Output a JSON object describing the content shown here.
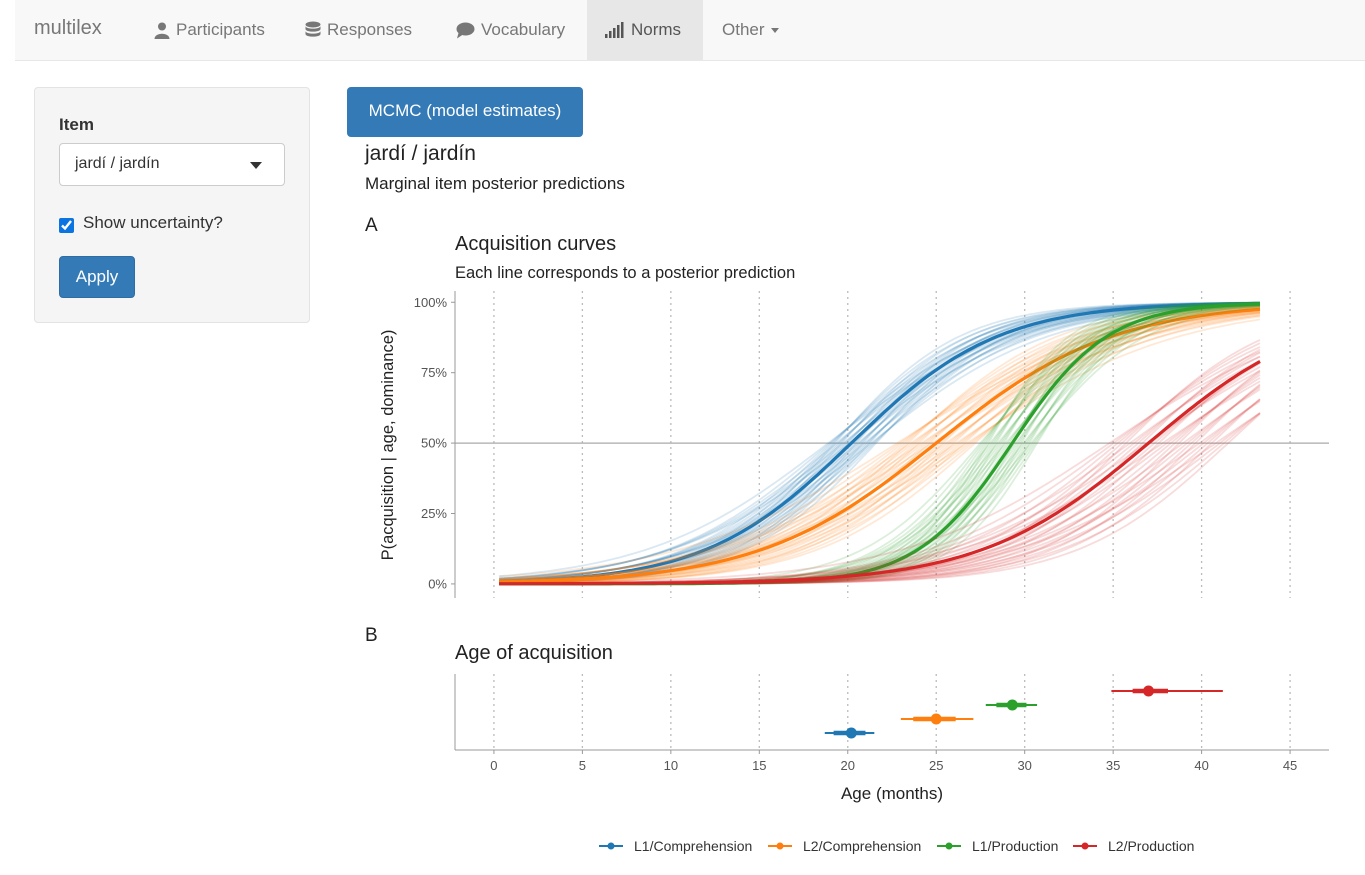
{
  "navbar": {
    "brand": "multilex",
    "items": [
      {
        "label": "Participants",
        "icon": "user-icon"
      },
      {
        "label": "Responses",
        "icon": "database-icon"
      },
      {
        "label": "Vocabulary",
        "icon": "comment-icon"
      },
      {
        "label": "Norms",
        "icon": "signal-icon",
        "active": true
      },
      {
        "label": "Other",
        "icon": "chevron-down-icon"
      }
    ]
  },
  "sidebar": {
    "item_label": "Item",
    "item_value": "jardí / jardín",
    "uncertainty_label": "Show uncertainty?",
    "uncertainty_checked": true,
    "apply_label": "Apply"
  },
  "main": {
    "tab_button": "MCMC (model estimates)",
    "item_title": "jardí / jardín",
    "item_subtitle": "Marginal item posterior predictions"
  },
  "chart_data": [
    {
      "panel": "A",
      "type": "line",
      "title": "Acquisition curves",
      "subtitle": "Each line corresponds to a posterior prediction",
      "xlabel": "",
      "ylabel": "P(acquisition | age, dominance)",
      "xlim": [
        -2.2,
        47.2
      ],
      "ylim": [
        -0.05,
        1.04
      ],
      "yticks": [
        0,
        0.25,
        0.5,
        0.75,
        1
      ],
      "yticklabels": [
        "0%",
        "25%",
        "50%",
        "75%",
        "100%"
      ],
      "xticks": [
        0,
        5,
        10,
        15,
        20,
        25,
        30,
        35,
        40,
        45
      ],
      "x_range": [
        0.3,
        43.3
      ],
      "reference_line": 0.5,
      "series": [
        {
          "name": "L1/Comprehension",
          "color": "#1f77b4",
          "aoa": 20.2,
          "slope": 0.24,
          "spread": [
            18.9,
            21.6
          ]
        },
        {
          "name": "L2/Comprehension",
          "color": "#ff7f0e",
          "aoa": 25.0,
          "slope": 0.2,
          "spread": [
            22.8,
            27.2
          ]
        },
        {
          "name": "L1/Production",
          "color": "#2ca02c",
          "aoa": 29.3,
          "slope": 0.37,
          "spread": [
            27.5,
            30.7
          ]
        },
        {
          "name": "L2/Production",
          "color": "#d62728",
          "aoa": 37.0,
          "slope": 0.21,
          "spread": [
            34.8,
            41.5
          ]
        }
      ]
    },
    {
      "panel": "B",
      "type": "scatter",
      "title": "Age of acquisition",
      "xlabel": "Age (months)",
      "xlim": [
        -2.2,
        47.2
      ],
      "xticks": [
        0,
        5,
        10,
        15,
        20,
        25,
        30,
        35,
        40,
        45
      ],
      "points": [
        {
          "name": "L1/Comprehension",
          "color": "#1f77b4",
          "median": 20.2,
          "inner": [
            19.2,
            21.0
          ],
          "outer": [
            18.7,
            21.5
          ]
        },
        {
          "name": "L2/Comprehension",
          "color": "#ff7f0e",
          "median": 25.0,
          "inner": [
            23.7,
            26.1
          ],
          "outer": [
            23.0,
            27.1
          ]
        },
        {
          "name": "L1/Production",
          "color": "#2ca02c",
          "median": 29.3,
          "inner": [
            28.4,
            30.1
          ],
          "outer": [
            27.8,
            30.7
          ]
        },
        {
          "name": "L2/Production",
          "color": "#d62728",
          "median": 37.0,
          "inner": [
            36.1,
            38.1
          ],
          "outer": [
            34.9,
            41.2
          ]
        }
      ]
    }
  ],
  "panel_labels": [
    "A",
    "B"
  ],
  "legend": [
    "L1/Comprehension",
    "L2/Comprehension",
    "L1/Production",
    "L2/Production"
  ]
}
